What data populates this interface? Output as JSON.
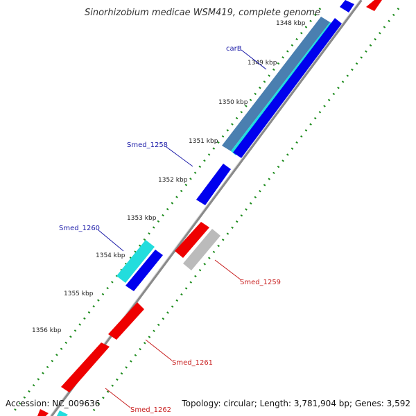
{
  "title": "Sinorhizobium medicae WSM419, complete genome",
  "footer": {
    "accession": "Accession: NC_009636",
    "summary": "Topology: circular; Length: 3,781,904 bp; Genes: 3,592"
  },
  "ticks": [
    "1348 kbp",
    "1349 kbp",
    "1350 kbp",
    "1351 kbp",
    "1352 kbp",
    "1353 kbp",
    "1354 kbp",
    "1355 kbp",
    "1356 kbp"
  ],
  "genes": [
    {
      "name": "carB",
      "color": "#1a1aa8"
    },
    {
      "name": "Smed_1258",
      "color": "#1a1aa8"
    },
    {
      "name": "Smed_1260",
      "color": "#1a1aa8"
    },
    {
      "name": "Smed_1259",
      "color": "#c81e1e"
    },
    {
      "name": "Smed_1261",
      "color": "#c81e1e"
    },
    {
      "name": "Smed_1262",
      "color": "#c81e1e"
    }
  ],
  "colors": {
    "forward_cds": "#0000ee",
    "reverse_cds": "#ee0000",
    "forward_feature": "#22dddd",
    "gene_region": "#4a7fb0",
    "grey_feature": "#bbbbbb",
    "backbone": "#8a8a8a",
    "gc_dots": "#1a8a1a"
  }
}
